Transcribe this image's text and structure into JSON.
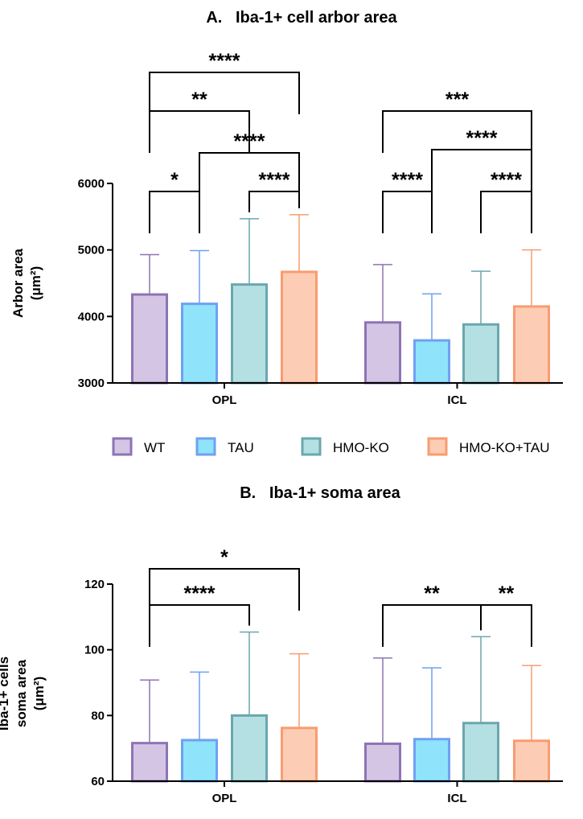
{
  "colors": {
    "WT": {
      "fill": "#d4c5e5",
      "stroke": "#8d74b4"
    },
    "TAU": {
      "fill": "#8fe3fb",
      "stroke": "#6fa1f2"
    },
    "HMO-KO": {
      "fill": "#b5e0e3",
      "stroke": "#6aa7ad"
    },
    "HMO-KO+TAU": {
      "fill": "#fccdb4",
      "stroke": "#f89c72"
    }
  },
  "legend": [
    "WT",
    "TAU",
    "HMO-KO",
    "HMO-KO+TAU"
  ],
  "chart_data": [
    {
      "type": "bar",
      "title": "A.   Iba-1+ cell arbor area",
      "ylabel_lines": [
        "Arbor area",
        "(μm²)"
      ],
      "categories": [
        "OPL",
        "ICL"
      ],
      "ylim": [
        3000,
        6000
      ],
      "yticks": [
        3000,
        4000,
        5000,
        6000
      ],
      "series": [
        {
          "name": "WT",
          "values": [
            4330,
            3910
          ],
          "errors": [
            4930,
            4780
          ]
        },
        {
          "name": "TAU",
          "values": [
            4190,
            3640
          ],
          "errors": [
            4990,
            4340
          ]
        },
        {
          "name": "HMO-KO",
          "values": [
            4480,
            3880
          ],
          "errors": [
            5470,
            4680
          ]
        },
        {
          "name": "HMO-KO+TAU",
          "values": [
            4670,
            4150
          ],
          "errors": [
            5530,
            5000
          ]
        }
      ],
      "significance": [
        {
          "group": 0,
          "from": 0,
          "to": 1,
          "label": "*"
        },
        {
          "group": 0,
          "from": 2,
          "to": 3,
          "label": "****"
        },
        {
          "group": 0,
          "from": 1,
          "to": 3,
          "label": "****"
        },
        {
          "group": 0,
          "from": 0,
          "to": 2,
          "label": "**"
        },
        {
          "group": 0,
          "from": 0,
          "to": 3,
          "label": "****"
        },
        {
          "group": 1,
          "from": 0,
          "to": 1,
          "label": "****"
        },
        {
          "group": 1,
          "from": 2,
          "to": 3,
          "label": "****"
        },
        {
          "group": 1,
          "from": 1,
          "to": 3,
          "label": "****"
        },
        {
          "group": 1,
          "from": 0,
          "to": 3,
          "label": "***"
        }
      ]
    },
    {
      "type": "bar",
      "title": "B.   Iba-1+ soma area",
      "ylabel_lines": [
        "Iba-1+ cells",
        "soma area",
        "(μm²)"
      ],
      "categories": [
        "OPL",
        "ICL"
      ],
      "ylim": [
        60,
        120
      ],
      "yticks": [
        60,
        80,
        100,
        120
      ],
      "series": [
        {
          "name": "WT",
          "values": [
            71.6,
            71.4
          ],
          "errors": [
            90.8,
            97.5
          ]
        },
        {
          "name": "TAU",
          "values": [
            72.5,
            72.8
          ],
          "errors": [
            93.2,
            94.5
          ]
        },
        {
          "name": "HMO-KO",
          "values": [
            80.0,
            77.7
          ],
          "errors": [
            105.4,
            104.0
          ]
        },
        {
          "name": "HMO-KO+TAU",
          "values": [
            76.2,
            72.3
          ],
          "errors": [
            98.8,
            95.2
          ]
        }
      ],
      "significance": [
        {
          "group": 0,
          "from": 0,
          "to": 2,
          "label": "****"
        },
        {
          "group": 0,
          "from": 0,
          "to": 3,
          "label": "*"
        },
        {
          "group": 1,
          "from": 0,
          "to": 2,
          "label": "**"
        },
        {
          "group": 1,
          "from": 2,
          "to": 3,
          "label": "**"
        }
      ]
    }
  ]
}
